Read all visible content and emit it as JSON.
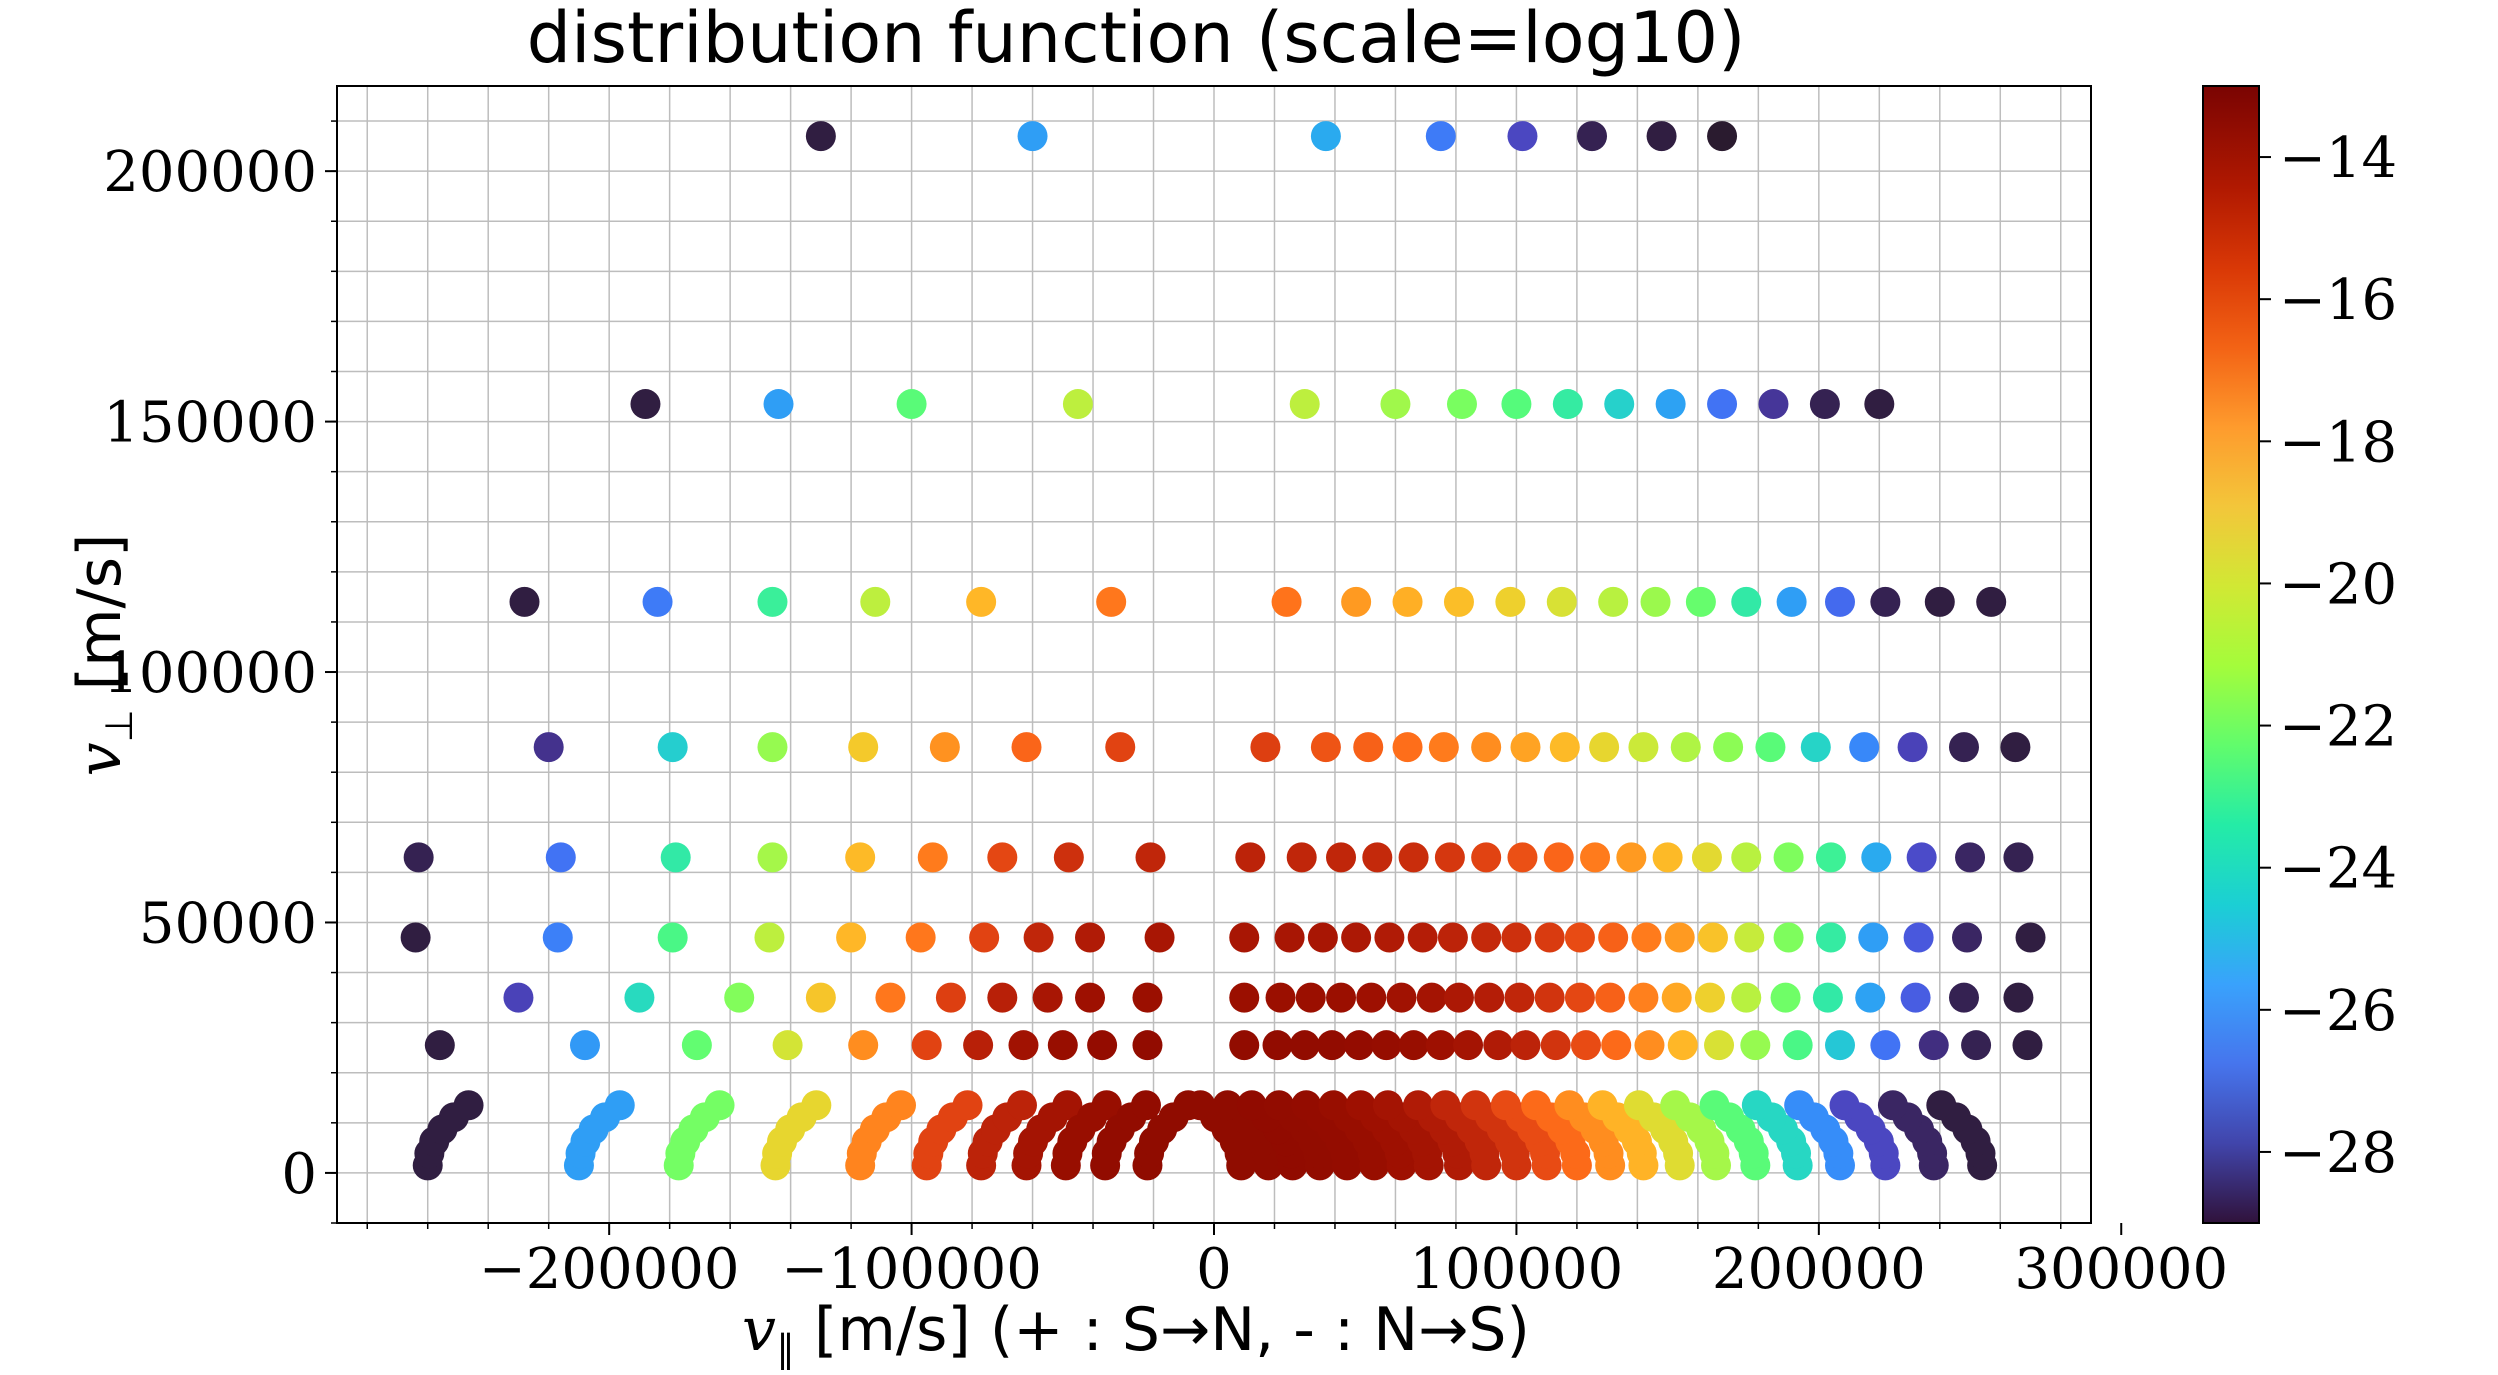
{
  "chart_data": {
    "type": "scatter",
    "title": "distribution function (scale=log10)",
    "xlabel": "v_∥ [m/s] (+ : S→N, - : N→S)",
    "ylabel": "v_⊥ [m/s]",
    "xlim": [
      -290000,
      290000
    ],
    "ylim": [
      -10000,
      217000
    ],
    "xticks": [
      -200000,
      -100000,
      0,
      100000,
      200000,
      300000
    ],
    "xtick_labels": [
      "−200000",
      "−100000",
      "0",
      "100000",
      "200000",
      "300000"
    ],
    "yticks": [
      0,
      50000,
      100000,
      150000,
      200000
    ],
    "ytick_labels": [
      "0",
      "50000",
      "100000",
      "150000",
      "200000"
    ],
    "grid": true,
    "colorbar": {
      "colormap": "turbo",
      "range": [
        -29,
        -13
      ],
      "ticks": [
        -14,
        -16,
        -18,
        -20,
        -22,
        -24,
        -26,
        -28
      ],
      "tick_labels": [
        "−14",
        "−16",
        "−18",
        "−20",
        "−22",
        "−24",
        "−26",
        "−28"
      ]
    },
    "rows": [
      {
        "y": 207000,
        "points": [
          [
            -130000,
            -28.8
          ],
          [
            -60000,
            -25.8
          ],
          [
            37000,
            -25.5
          ],
          [
            75000,
            -26.6
          ],
          [
            102000,
            -27.8
          ],
          [
            125000,
            -28.7
          ],
          [
            148000,
            -28.8
          ],
          [
            168000,
            -28.9
          ]
        ]
      },
      {
        "y": 153500,
        "points": [
          [
            -188000,
            -28.8
          ],
          [
            -144000,
            -25.8
          ],
          [
            -100000,
            -22.3
          ],
          [
            -45000,
            -20.2
          ],
          [
            30000,
            -20.2
          ],
          [
            60000,
            -20.8
          ],
          [
            82000,
            -21.6
          ],
          [
            100000,
            -22.4
          ],
          [
            117000,
            -23.4
          ],
          [
            134000,
            -24.4
          ],
          [
            151000,
            -25.7
          ],
          [
            168000,
            -26.8
          ],
          [
            185000,
            -28.2
          ],
          [
            202000,
            -28.7
          ],
          [
            220000,
            -28.8
          ]
        ]
      },
      {
        "y": 114000,
        "points": [
          [
            -228000,
            -28.8
          ],
          [
            -184000,
            -26.6
          ],
          [
            -146000,
            -23.2
          ],
          [
            -112000,
            -20.2
          ],
          [
            -77000,
            -18.3
          ],
          [
            -34000,
            -16.8
          ],
          [
            24000,
            -16.7
          ],
          [
            47000,
            -17.6
          ],
          [
            64000,
            -18.1
          ],
          [
            81000,
            -18.5
          ],
          [
            98000,
            -19.0
          ],
          [
            115000,
            -19.6
          ],
          [
            132000,
            -20.3
          ],
          [
            146000,
            -20.9
          ],
          [
            161000,
            -22.0
          ],
          [
            176000,
            -23.5
          ],
          [
            191000,
            -25.8
          ],
          [
            207000,
            -27.0
          ],
          [
            222000,
            -28.7
          ],
          [
            240000,
            -28.8
          ],
          [
            257000,
            -28.8
          ]
        ]
      },
      {
        "y": 85000,
        "points": [
          [
            -220000,
            -28.3
          ],
          [
            -179000,
            -24.5
          ],
          [
            -146000,
            -21.0
          ],
          [
            -116000,
            -18.8
          ],
          [
            -89000,
            -17.4
          ],
          [
            -62000,
            -16.4
          ],
          [
            -31000,
            -15.6
          ],
          [
            17000,
            -15.5
          ],
          [
            37000,
            -16.0
          ],
          [
            51000,
            -16.3
          ],
          [
            64000,
            -16.6
          ],
          [
            76000,
            -16.9
          ],
          [
            90000,
            -17.3
          ],
          [
            103000,
            -17.8
          ],
          [
            116000,
            -18.4
          ],
          [
            129000,
            -19.2
          ],
          [
            142000,
            -19.9
          ],
          [
            156000,
            -20.5
          ],
          [
            170000,
            -21.2
          ],
          [
            184000,
            -22.3
          ],
          [
            199000,
            -24.3
          ],
          [
            215000,
            -26.3
          ],
          [
            231000,
            -27.9
          ],
          [
            248000,
            -28.7
          ],
          [
            265000,
            -28.8
          ]
        ]
      },
      {
        "y": 63000,
        "points": [
          [
            -263000,
            -28.7
          ],
          [
            -216000,
            -26.8
          ],
          [
            -178000,
            -23.5
          ],
          [
            -146000,
            -20.7
          ],
          [
            -117000,
            -18.4
          ],
          [
            -93000,
            -16.9
          ],
          [
            -70000,
            -15.7
          ],
          [
            -48000,
            -15.1
          ],
          [
            -21000,
            -14.8
          ],
          [
            12000,
            -14.7
          ],
          [
            29000,
            -14.8
          ],
          [
            42000,
            -14.8
          ],
          [
            54000,
            -14.9
          ],
          [
            66000,
            -15.0
          ],
          [
            78000,
            -15.3
          ],
          [
            90000,
            -15.6
          ],
          [
            102000,
            -15.9
          ],
          [
            114000,
            -16.4
          ],
          [
            126000,
            -16.9
          ],
          [
            138000,
            -17.6
          ],
          [
            150000,
            -18.4
          ],
          [
            163000,
            -19.3
          ],
          [
            176000,
            -20.3
          ],
          [
            190000,
            -21.5
          ],
          [
            204000,
            -23.1
          ],
          [
            219000,
            -25.5
          ],
          [
            234000,
            -27.7
          ],
          [
            250000,
            -28.6
          ],
          [
            266000,
            -28.7
          ]
        ]
      },
      {
        "y": 47000,
        "points": [
          [
            -264000,
            -28.8
          ],
          [
            -217000,
            -26.5
          ],
          [
            -179000,
            -22.7
          ],
          [
            -147000,
            -20.2
          ],
          [
            -120000,
            -18.3
          ],
          [
            -97000,
            -16.8
          ],
          [
            -76000,
            -15.6
          ],
          [
            -58000,
            -14.8
          ],
          [
            -41000,
            -14.4
          ],
          [
            -18000,
            -14.2
          ],
          [
            10000,
            -14.2
          ],
          [
            25000,
            -14.2
          ],
          [
            36000,
            -14.2
          ],
          [
            47000,
            -14.3
          ],
          [
            58000,
            -14.4
          ],
          [
            69000,
            -14.5
          ],
          [
            79000,
            -14.7
          ],
          [
            90000,
            -14.9
          ],
          [
            100000,
            -15.1
          ],
          [
            111000,
            -15.4
          ],
          [
            121000,
            -15.8
          ],
          [
            132000,
            -16.3
          ],
          [
            143000,
            -16.9
          ],
          [
            154000,
            -17.6
          ],
          [
            165000,
            -18.6
          ],
          [
            177000,
            -20.0
          ],
          [
            190000,
            -21.5
          ],
          [
            204000,
            -23.4
          ],
          [
            218000,
            -25.8
          ],
          [
            233000,
            -27.4
          ],
          [
            249000,
            -28.6
          ],
          [
            270000,
            -28.8
          ]
        ]
      },
      {
        "y": 35000,
        "points": [
          [
            -230000,
            -27.9
          ],
          [
            -190000,
            -24.1
          ],
          [
            -157000,
            -21.4
          ],
          [
            -130000,
            -18.7
          ],
          [
            -107000,
            -16.8
          ],
          [
            -87000,
            -15.5
          ],
          [
            -70000,
            -14.6
          ],
          [
            -55000,
            -14.2
          ],
          [
            -41000,
            -13.9
          ],
          [
            -22000,
            -13.8
          ],
          [
            10000,
            -13.8
          ],
          [
            22000,
            -13.8
          ],
          [
            32000,
            -13.8
          ],
          [
            42000,
            -13.8
          ],
          [
            52000,
            -13.9
          ],
          [
            62000,
            -14.0
          ],
          [
            72000,
            -14.1
          ],
          [
            81000,
            -14.3
          ],
          [
            91000,
            -14.5
          ],
          [
            101000,
            -14.8
          ],
          [
            111000,
            -15.2
          ],
          [
            121000,
            -15.7
          ],
          [
            131000,
            -16.3
          ],
          [
            142000,
            -17.0
          ],
          [
            153000,
            -17.9
          ],
          [
            164000,
            -19.0
          ],
          [
            176000,
            -20.3
          ],
          [
            189000,
            -21.8
          ],
          [
            203000,
            -23.5
          ],
          [
            217000,
            -25.7
          ],
          [
            232000,
            -27.3
          ],
          [
            248000,
            -28.7
          ],
          [
            266000,
            -28.8
          ]
        ]
      },
      {
        "y": 25500,
        "points": [
          [
            -256000,
            -28.8
          ],
          [
            -208000,
            -25.9
          ],
          [
            -171000,
            -22.1
          ],
          [
            -141000,
            -19.7
          ],
          [
            -116000,
            -17.3
          ],
          [
            -95000,
            -15.6
          ],
          [
            -78000,
            -14.6
          ],
          [
            -63000,
            -14.0
          ],
          [
            -50000,
            -13.7
          ],
          [
            -37000,
            -13.5
          ],
          [
            -22000,
            -13.4
          ],
          [
            10000,
            -13.4
          ],
          [
            21000,
            -13.4
          ],
          [
            30000,
            -13.4
          ],
          [
            39000,
            -13.4
          ],
          [
            48000,
            -13.5
          ],
          [
            57000,
            -13.6
          ],
          [
            66000,
            -13.7
          ],
          [
            75000,
            -13.9
          ],
          [
            84000,
            -14.1
          ],
          [
            94000,
            -14.4
          ],
          [
            103000,
            -14.7
          ],
          [
            113000,
            -15.2
          ],
          [
            123000,
            -15.8
          ],
          [
            133000,
            -16.5
          ],
          [
            144000,
            -17.3
          ],
          [
            155000,
            -18.3
          ],
          [
            167000,
            -19.6
          ],
          [
            179000,
            -21.0
          ],
          [
            193000,
            -22.7
          ],
          [
            207000,
            -24.7
          ],
          [
            222000,
            -26.8
          ],
          [
            238000,
            -28.4
          ],
          [
            252000,
            -28.7
          ],
          [
            269000,
            -28.8
          ]
        ]
      }
    ],
    "arcs": [
      {
        "x0": -260000,
        "value": -28.8
      },
      {
        "x0": -210000,
        "value": -25.8
      },
      {
        "x0": -177000,
        "value": -21.7
      },
      {
        "x0": -145000,
        "value": -19.2
      },
      {
        "x0": -117000,
        "value": -17.1
      },
      {
        "x0": -95000,
        "value": -15.6
      },
      {
        "x0": -77000,
        "value": -14.7
      },
      {
        "x0": -62000,
        "value": -14.1
      },
      {
        "x0": -49000,
        "value": -13.7
      },
      {
        "x0": -36000,
        "value": -13.4
      },
      {
        "x0": -22000,
        "value": -13.2
      },
      {
        "x0": 9000,
        "value": -13.1
      },
      {
        "x0": 18000,
        "value": -13.2
      },
      {
        "x0": 26000,
        "value": -13.3
      },
      {
        "x0": 35000,
        "value": -13.4
      },
      {
        "x0": 44000,
        "value": -13.5
      },
      {
        "x0": 53000,
        "value": -13.7
      },
      {
        "x0": 62000,
        "value": -13.9
      },
      {
        "x0": 71000,
        "value": -14.1
      },
      {
        "x0": 81000,
        "value": -14.4
      },
      {
        "x0": 90000,
        "value": -14.8
      },
      {
        "x0": 100000,
        "value": -15.2
      },
      {
        "x0": 110000,
        "value": -15.8
      },
      {
        "x0": 120000,
        "value": -16.5
      },
      {
        "x0": 131000,
        "value": -17.3
      },
      {
        "x0": 142000,
        "value": -18.2
      },
      {
        "x0": 154000,
        "value": -19.4
      },
      {
        "x0": 166000,
        "value": -20.7
      },
      {
        "x0": 179000,
        "value": -22.3
      },
      {
        "x0": 193000,
        "value": -24.2
      },
      {
        "x0": 207000,
        "value": -26.2
      },
      {
        "x0": 222000,
        "value": -27.8
      },
      {
        "x0": 238000,
        "value": -28.6
      },
      {
        "x0": 254000,
        "value": -28.8
      }
    ]
  }
}
